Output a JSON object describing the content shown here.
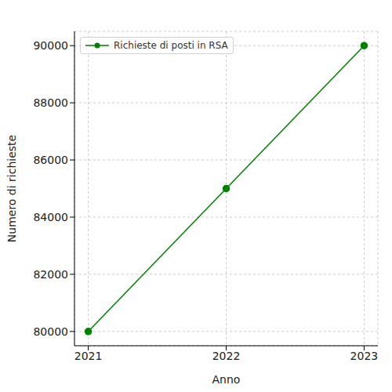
{
  "chart_data": {
    "type": "line",
    "x": [
      2021,
      2022,
      2023
    ],
    "series": [
      {
        "name": "Richieste di posti in RSA",
        "color": "#008000",
        "values": [
          80000,
          85000,
          90000
        ],
        "marker": "circle",
        "line_style": "solid"
      }
    ],
    "x_label": "Anno",
    "y_label": "Numero di richieste",
    "xlim": [
      2020.9,
      2023.1
    ],
    "xticks": [
      2021,
      2022,
      2023
    ],
    "ylim": [
      79500,
      90500
    ],
    "yticks": [
      80000,
      82000,
      84000,
      86000,
      88000,
      90000
    ],
    "grid": true,
    "legend": "upper left"
  }
}
